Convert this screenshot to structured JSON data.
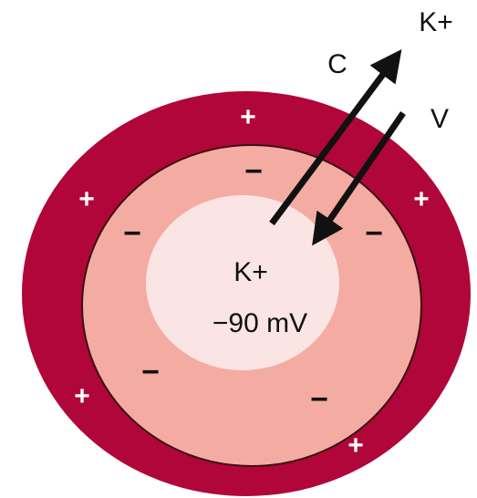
{
  "labels": {
    "outer_ion": "K+",
    "chemical": "C",
    "voltage": "V",
    "inner_ion": "K+",
    "potential": "−90 mV"
  },
  "outside_charges": [
    "+",
    "+",
    "+",
    "+",
    "+"
  ],
  "inside_charges": [
    "−",
    "−",
    "−",
    "−",
    "−"
  ]
}
